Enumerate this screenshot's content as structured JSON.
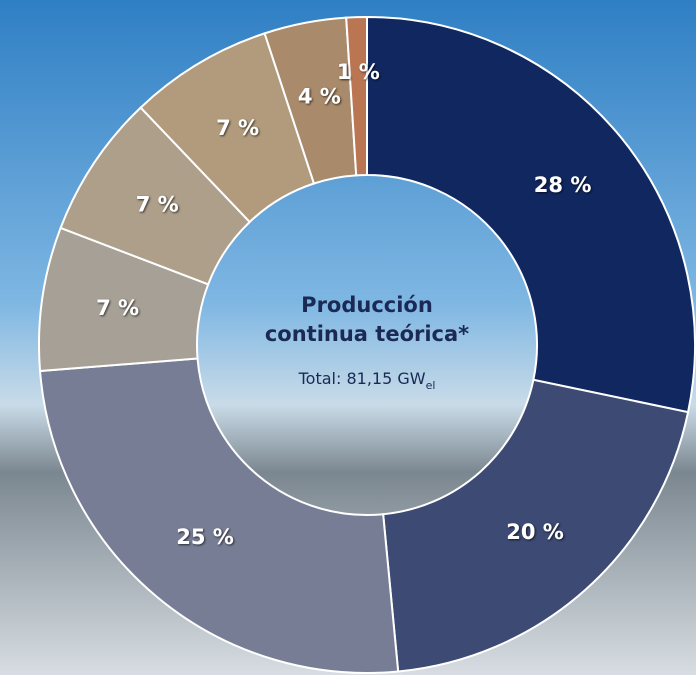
{
  "chart_data": {
    "type": "donut",
    "center_title": [
      "Producción",
      "continua teórica*"
    ],
    "center_total": "Total: 81,15 GW",
    "center_total_unit": "el",
    "categories": [
      null,
      null,
      null,
      null,
      null,
      null,
      null,
      null
    ],
    "values": [
      28,
      20,
      25,
      7,
      7,
      7,
      4,
      1
    ],
    "value_labels": [
      "28 %",
      "20 %",
      "25 %",
      "7 %",
      "7 %",
      "7 %",
      "4 %",
      "1 %"
    ],
    "colors": [
      "#10275f",
      "#3c4a74",
      "#777d95",
      "#a6a096",
      "#ad9f8a",
      "#b19b7c",
      "#a98a6b",
      "#ba7553"
    ]
  }
}
